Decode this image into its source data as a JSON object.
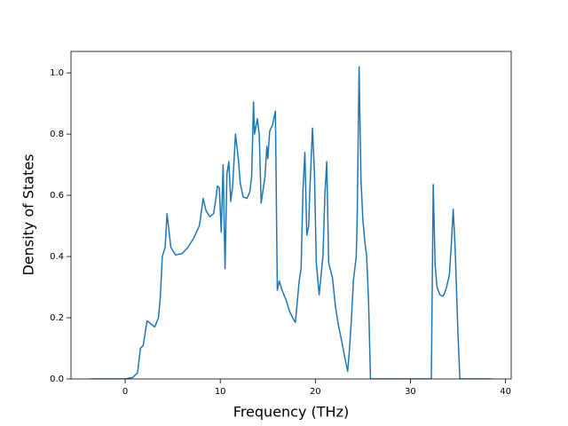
{
  "chart_data": {
    "type": "line",
    "xlabel": "Frequency (THz)",
    "ylabel": "Density of States",
    "color": "#1f77b4",
    "xlim": [
      -5.7,
      40.6
    ],
    "ylim": [
      0,
      1.07
    ],
    "xticks": [
      0,
      10,
      20,
      30,
      40
    ],
    "yticks": [
      {
        "value": 0,
        "label": "0.0"
      },
      {
        "value": 0.2,
        "label": "0.2"
      },
      {
        "value": 0.4,
        "label": "0.4"
      },
      {
        "value": 0.6,
        "label": "0.6"
      },
      {
        "value": 0.8,
        "label": "0.8"
      },
      {
        "value": 1,
        "label": "1.0"
      }
    ],
    "x": [
      -3.6,
      0,
      0.8,
      1.3,
      1.6,
      1.9,
      2.3,
      3.1,
      3.5,
      3.7,
      3.9,
      4.2,
      4.4,
      4.8,
      5.3,
      6.0,
      6.6,
      7.2,
      7.8,
      7.9,
      8.2,
      8.5,
      8.9,
      9.3,
      9.5,
      9.7,
      9.9,
      10.1,
      10.3,
      10.5,
      10.7,
      10.9,
      11.1,
      11.3,
      11.6,
      11.9,
      12.1,
      12.4,
      12.8,
      13.1,
      13.3,
      13.5,
      13.6,
      13.9,
      14.1,
      14.3,
      14.7,
      14.9,
      15.0,
      15.2,
      15.5,
      15.8,
      16.0,
      16.2,
      16.5,
      16.9,
      17.3,
      17.7,
      17.9,
      18.3,
      18.5,
      18.7,
      18.9,
      19.1,
      19.3,
      19.4,
      19.7,
      19.9,
      20.1,
      20.4,
      20.7,
      20.8,
      21.0,
      21.2,
      21.4,
      21.8,
      22.1,
      22.4,
      22.8,
      23.1,
      23.4,
      23.6,
      23.8,
      24.0,
      24.3,
      24.4,
      24.6,
      24.8,
      25.0,
      25.2,
      25.4,
      25.6,
      25.8,
      32.2,
      32.4,
      32.6,
      32.8,
      33.1,
      33.4,
      33.6,
      33.8,
      34.1,
      34.3,
      34.5,
      34.7,
      35.0,
      35.2,
      38.5
    ],
    "values": [
      0,
      0,
      0.005,
      0.02,
      0.1,
      0.11,
      0.19,
      0.17,
      0.2,
      0.27,
      0.4,
      0.43,
      0.54,
      0.43,
      0.405,
      0.41,
      0.43,
      0.46,
      0.5,
      0.52,
      0.59,
      0.55,
      0.53,
      0.54,
      0.58,
      0.63,
      0.625,
      0.48,
      0.7,
      0.36,
      0.67,
      0.71,
      0.58,
      0.63,
      0.8,
      0.72,
      0.64,
      0.595,
      0.59,
      0.61,
      0.66,
      0.905,
      0.8,
      0.85,
      0.8,
      0.575,
      0.66,
      0.76,
      0.72,
      0.81,
      0.83,
      0.875,
      0.29,
      0.32,
      0.29,
      0.26,
      0.22,
      0.195,
      0.185,
      0.32,
      0.36,
      0.62,
      0.74,
      0.47,
      0.5,
      0.6,
      0.82,
      0.68,
      0.38,
      0.275,
      0.37,
      0.4,
      0.6,
      0.71,
      0.38,
      0.33,
      0.24,
      0.18,
      0.12,
      0.07,
      0.025,
      0.1,
      0.2,
      0.32,
      0.4,
      0.52,
      1.02,
      0.65,
      0.52,
      0.45,
      0.4,
      0.25,
      0,
      0,
      0.635,
      0.37,
      0.3,
      0.275,
      0.27,
      0.28,
      0.3,
      0.34,
      0.44,
      0.555,
      0.43,
      0.15,
      0,
      0
    ]
  }
}
